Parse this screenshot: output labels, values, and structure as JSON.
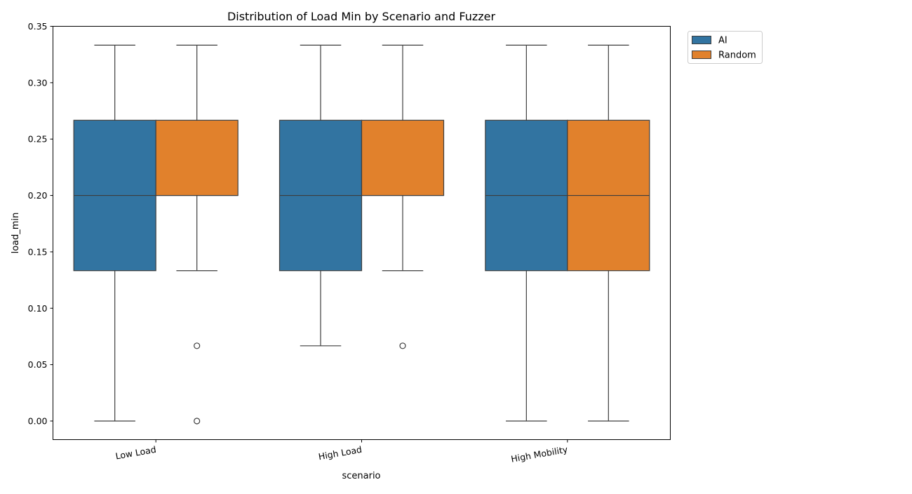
{
  "chart_data": {
    "type": "box",
    "title": "Distribution of Load Min by Scenario and Fuzzer",
    "xlabel": "scenario",
    "ylabel": "load_min",
    "ylim": [
      -0.0165,
      0.35
    ],
    "yticks": [
      0.0,
      0.05,
      0.1,
      0.15,
      0.2,
      0.25,
      0.3,
      0.35
    ],
    "ytick_labels": [
      "0.00",
      "0.05",
      "0.10",
      "0.15",
      "0.20",
      "0.25",
      "0.30",
      "0.35"
    ],
    "categories": [
      "Low Load",
      "High Load",
      "High Mobility"
    ],
    "legend_position": "outside-top-right",
    "grid": false,
    "series": [
      {
        "name": "AI",
        "color": "#3274a1",
        "boxes": [
          {
            "whisker_low": 0.0,
            "q1": 0.1333,
            "median": 0.2,
            "q3": 0.2667,
            "whisker_high": 0.3333,
            "outliers": []
          },
          {
            "whisker_low": 0.0667,
            "q1": 0.1333,
            "median": 0.2,
            "q3": 0.2667,
            "whisker_high": 0.3333,
            "outliers": []
          },
          {
            "whisker_low": 0.0,
            "q1": 0.1333,
            "median": 0.2,
            "q3": 0.2667,
            "whisker_high": 0.3333,
            "outliers": []
          }
        ]
      },
      {
        "name": "Random",
        "color": "#e1812c",
        "boxes": [
          {
            "whisker_low": 0.1333,
            "q1": 0.2,
            "median": 0.2,
            "q3": 0.2667,
            "whisker_high": 0.3333,
            "outliers": [
              0.0667,
              0.0
            ]
          },
          {
            "whisker_low": 0.1333,
            "q1": 0.2,
            "median": 0.2,
            "q3": 0.2667,
            "whisker_high": 0.3333,
            "outliers": [
              0.0667
            ]
          },
          {
            "whisker_low": 0.0,
            "q1": 0.1333,
            "median": 0.2,
            "q3": 0.2667,
            "whisker_high": 0.3333,
            "outliers": []
          }
        ]
      }
    ]
  }
}
